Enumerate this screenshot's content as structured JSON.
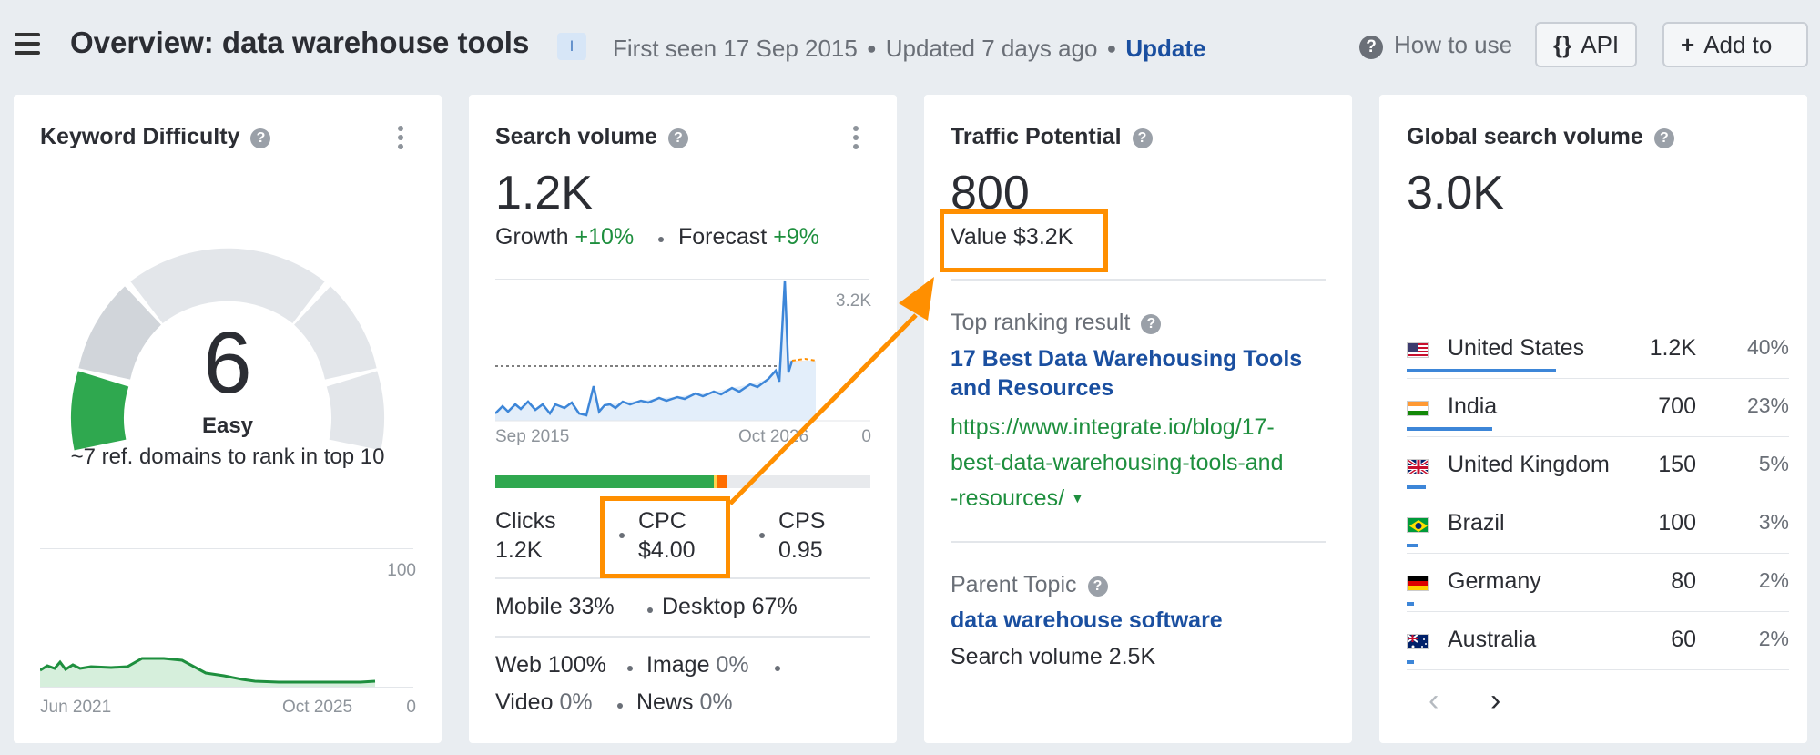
{
  "header": {
    "title": "Overview: data warehouse tools",
    "pill_label": "I",
    "first_seen": "First seen 17 Sep 2015",
    "updated": "Updated 7 days ago",
    "update_link": "Update",
    "how_to_use": "How to use",
    "api_icon": "{}",
    "api_label": "API",
    "add_icon": "+",
    "add_label": "Add to"
  },
  "kd": {
    "title": "Keyword Difficulty",
    "value": "6",
    "difficulty_level": 0.06,
    "label": "Easy",
    "subtext": "~7 ref. domains to rank in top 10",
    "chart_max": "100",
    "chart_zero": "0",
    "x_start": "Jun 2021",
    "x_end": "Oct 2025"
  },
  "sv": {
    "title": "Search volume",
    "value": "1.2K",
    "growth_label": "Growth",
    "growth_value": "+10%",
    "forecast_label": "Forecast",
    "forecast_value": "+9%",
    "chart_max": "3.2K",
    "chart_zero": "0",
    "x_start": "Sep 2015",
    "x_end": "Oct 2026",
    "clicks_label": "Clicks",
    "clicks_value": "1.2K",
    "cpc_label": "CPC",
    "cpc_value": "$4.00",
    "cps_label": "CPS",
    "cps_value": "0.95",
    "mobile": "Mobile 33%",
    "desktop": "Desktop 67%",
    "web": "Web 100%",
    "image_label": "Image",
    "image_value": "0%",
    "video_label": "Video",
    "video_value": "0%",
    "news_label": "News",
    "news_value": "0%"
  },
  "tp": {
    "title": "Traffic Potential",
    "value": "800",
    "value_label": "Value $3.2K",
    "top_result_label": "Top ranking result",
    "top_result_title_1": "17 Best Data Warehousing Tools",
    "top_result_title_2": "and Resources",
    "url_1": "https://www.integrate.io/blog/17-",
    "url_2": "best-data-warehousing-tools-and",
    "url_3": "-resources/",
    "parent_topic_label": "Parent Topic",
    "parent_topic": "data warehouse software",
    "parent_volume": "Search volume 2.5K"
  },
  "gsv": {
    "title": "Global search volume",
    "value": "3.0K",
    "countries": [
      {
        "name": "United States",
        "volume": "1.2K",
        "share": "40%",
        "share_value": 40
      },
      {
        "name": "India",
        "volume": "700",
        "share": "23%",
        "share_value": 23
      },
      {
        "name": "United Kingdom",
        "volume": "150",
        "share": "5%",
        "share_value": 5
      },
      {
        "name": "Brazil",
        "volume": "100",
        "share": "3%",
        "share_value": 3
      },
      {
        "name": "Germany",
        "volume": "80",
        "share": "2%",
        "share_value": 2
      },
      {
        "name": "Australia",
        "volume": "60",
        "share": "2%",
        "share_value": 2
      }
    ]
  },
  "colors": {
    "accent_blue": "#1a4fa0",
    "green": "#1e8f3e",
    "highlight_orange": "#ff8f00",
    "chart_blue": "#3d86d8",
    "kd_green": "#2fa84f"
  }
}
